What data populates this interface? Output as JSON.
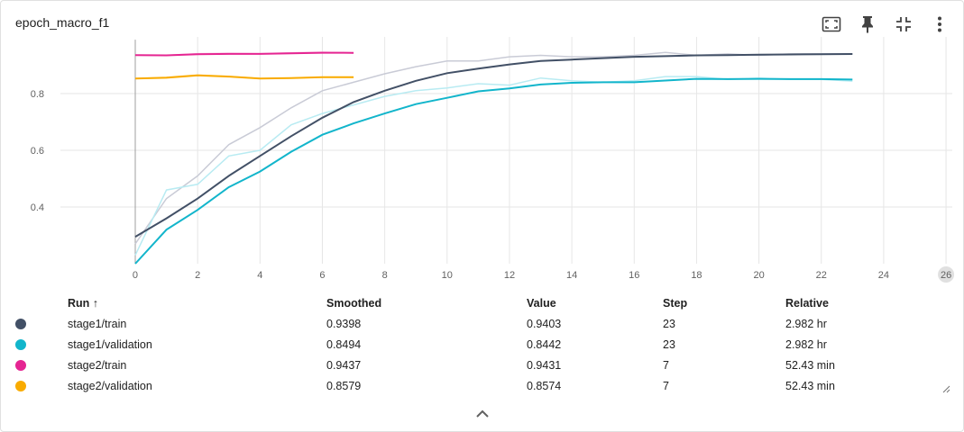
{
  "card": {
    "title": "epoch_macro_f1"
  },
  "toolbar": {
    "buttons": [
      {
        "name": "fit-domain-icon"
      },
      {
        "name": "pin-icon"
      },
      {
        "name": "collapse-icon"
      },
      {
        "name": "more-vert-icon"
      }
    ]
  },
  "chart_data": {
    "type": "line",
    "title": "epoch_macro_f1",
    "xlabel": "",
    "ylabel": "",
    "xlim": [
      -2.4,
      26.2
    ],
    "ylim": [
      0.2,
      1.0
    ],
    "x_ticks": [
      "0",
      "2",
      "4",
      "6",
      "8",
      "10",
      "12",
      "14",
      "16",
      "18",
      "20",
      "22",
      "24",
      "26"
    ],
    "y_ticks": [
      "0.4",
      "0.6",
      "0.8"
    ],
    "grid": true,
    "series": [
      {
        "name": "stage1/train",
        "color": "#425066",
        "raw_color": "#c9cbd6",
        "x": [
          0,
          1,
          2,
          3,
          4,
          5,
          6,
          7,
          8,
          9,
          10,
          11,
          12,
          13,
          14,
          15,
          16,
          17,
          18,
          19,
          20,
          21,
          22,
          23
        ],
        "raw": [
          0.27,
          0.43,
          0.51,
          0.62,
          0.68,
          0.75,
          0.81,
          0.84,
          0.87,
          0.895,
          0.915,
          0.915,
          0.93,
          0.935,
          0.93,
          0.93,
          0.935,
          0.945,
          0.935,
          0.94,
          0.935,
          0.94,
          0.94,
          0.9403
        ],
        "smoothed": [
          0.295,
          0.36,
          0.43,
          0.51,
          0.58,
          0.65,
          0.715,
          0.77,
          0.81,
          0.845,
          0.872,
          0.888,
          0.903,
          0.915,
          0.92,
          0.925,
          0.93,
          0.932,
          0.935,
          0.936,
          0.937,
          0.938,
          0.939,
          0.9398
        ]
      },
      {
        "name": "stage1/validation",
        "color": "#12b5cb",
        "raw_color": "#b8ebf2",
        "x": [
          0,
          1,
          2,
          3,
          4,
          5,
          6,
          7,
          8,
          9,
          10,
          11,
          12,
          13,
          14,
          15,
          16,
          17,
          18,
          19,
          20,
          21,
          22,
          23
        ],
        "raw": [
          0.23,
          0.46,
          0.48,
          0.58,
          0.6,
          0.69,
          0.73,
          0.76,
          0.79,
          0.81,
          0.82,
          0.835,
          0.83,
          0.855,
          0.845,
          0.84,
          0.845,
          0.86,
          0.86,
          0.85,
          0.855,
          0.85,
          0.85,
          0.8442
        ],
        "smoothed": [
          0.2,
          0.32,
          0.39,
          0.47,
          0.525,
          0.595,
          0.655,
          0.695,
          0.73,
          0.763,
          0.785,
          0.808,
          0.818,
          0.832,
          0.838,
          0.84,
          0.84,
          0.846,
          0.852,
          0.851,
          0.852,
          0.851,
          0.851,
          0.8494
        ]
      },
      {
        "name": "stage2/train",
        "color": "#e52592",
        "raw_color": "#f7b7da",
        "x": [
          0,
          1,
          2,
          3,
          4,
          5,
          6,
          7
        ],
        "raw": [
          0.936,
          0.935,
          0.941,
          0.942,
          0.941,
          0.944,
          0.946,
          0.9431
        ],
        "smoothed": [
          0.936,
          0.935,
          0.939,
          0.94,
          0.94,
          0.942,
          0.944,
          0.9437
        ]
      },
      {
        "name": "stage2/validation",
        "color": "#f9ab00",
        "raw_color": "#fde1a3",
        "x": [
          0,
          1,
          2,
          3,
          4,
          5,
          6,
          7
        ],
        "raw": [
          0.853,
          0.858,
          0.866,
          0.861,
          0.853,
          0.855,
          0.858,
          0.8574
        ],
        "smoothed": [
          0.853,
          0.856,
          0.864,
          0.86,
          0.853,
          0.855,
          0.858,
          0.8579
        ]
      }
    ]
  },
  "table": {
    "headers": {
      "run": "Run ↑",
      "smoothed": "Smoothed",
      "value": "Value",
      "step": "Step",
      "relative": "Relative"
    },
    "rows": [
      {
        "color": "#425066",
        "run": "stage1/train",
        "smoothed": "0.9398",
        "value": "0.9403",
        "step": "23",
        "relative": "2.982 hr"
      },
      {
        "color": "#12b5cb",
        "run": "stage1/validation",
        "smoothed": "0.8494",
        "value": "0.8442",
        "step": "23",
        "relative": "2.982 hr"
      },
      {
        "color": "#e52592",
        "run": "stage2/train",
        "smoothed": "0.9437",
        "value": "0.9431",
        "step": "7",
        "relative": "52.43 min"
      },
      {
        "color": "#f9ab00",
        "run": "stage2/validation",
        "smoothed": "0.8579",
        "value": "0.8574",
        "step": "7",
        "relative": "52.43 min"
      }
    ]
  },
  "footer": {
    "expand_icon": "chevron-up-icon"
  }
}
